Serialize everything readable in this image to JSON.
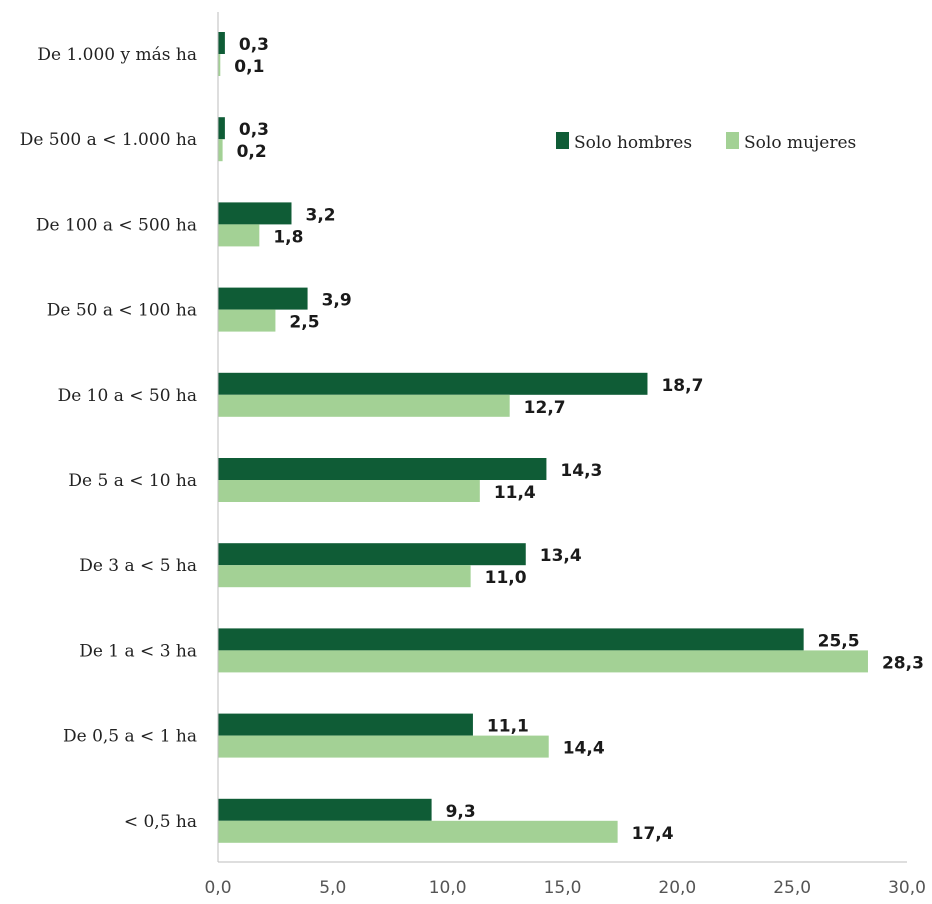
{
  "chart_data": {
    "type": "bar",
    "orientation": "horizontal",
    "categories": [
      "De 1.000 y más ha",
      "De 500 a < 1.000 ha",
      "De 100 a < 500 ha",
      "De 50 a < 100 ha",
      "De 10 a < 50 ha",
      "De 5 a < 10 ha",
      "De 3 a < 5 ha",
      "De 1 a < 3 ha",
      "De 0,5 a < 1 ha",
      "< 0,5 ha"
    ],
    "series": [
      {
        "name": "Solo hombres",
        "color": "#0f5c36",
        "values": [
          0.3,
          0.3,
          3.2,
          3.9,
          18.7,
          14.3,
          13.4,
          25.5,
          11.1,
          9.3
        ],
        "labels": [
          "0,3",
          "0,3",
          "3,2",
          "3,9",
          "18,7",
          "14,3",
          "13,4",
          "25,5",
          "11,1",
          "9,3"
        ]
      },
      {
        "name": "Solo mujeres",
        "color": "#a3d195",
        "values": [
          0.1,
          0.2,
          1.8,
          2.5,
          12.7,
          11.4,
          11.0,
          28.3,
          14.4,
          17.4
        ],
        "labels": [
          "0,1",
          "0,2",
          "1,8",
          "2,5",
          "12,7",
          "11,4",
          "11,0",
          "28,3",
          "14,4",
          "17,4"
        ]
      }
    ],
    "xlim": [
      0,
      30
    ],
    "xticks": [
      0,
      5,
      10,
      15,
      20,
      25,
      30
    ],
    "xtick_labels": [
      "0,0",
      "5,0",
      "10,0",
      "15,0",
      "20,0",
      "25,0",
      "30,0"
    ],
    "legend": {
      "position": "top-right"
    },
    "grid": false
  }
}
